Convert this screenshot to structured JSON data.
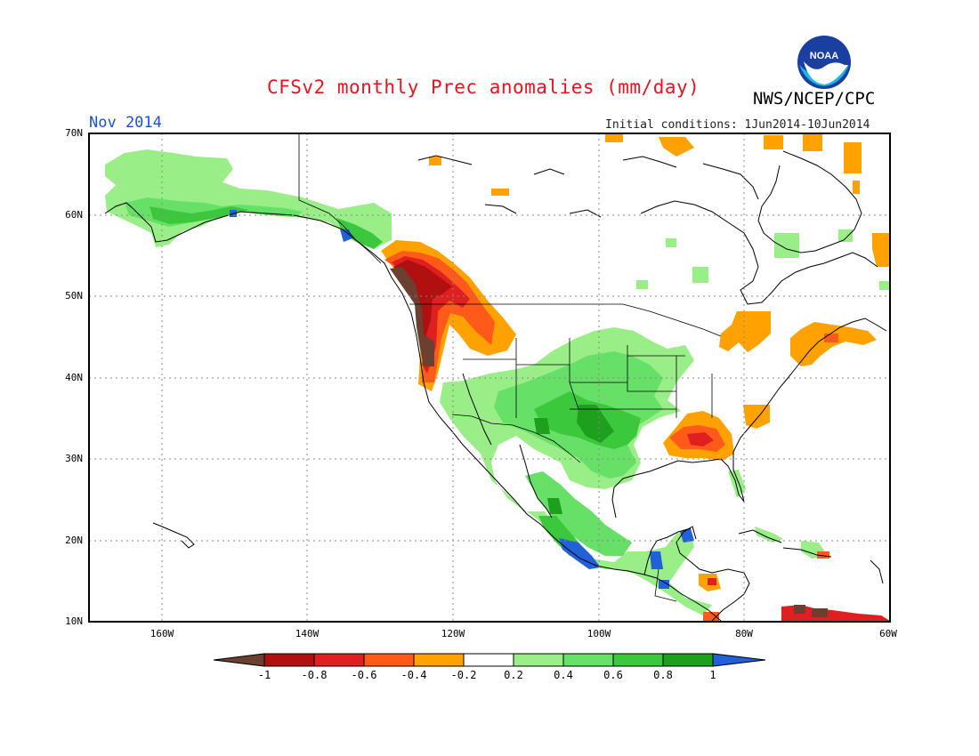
{
  "title": "CFSv2 monthly Prec anomalies (mm/day)",
  "agency": "NWS/NCEP/CPC",
  "logo_text": "NOAA",
  "valid_month": "Nov 2014",
  "initial_conditions": "Initial conditions: 1Jun2014-10Jun2014",
  "colors": {
    "title": "#e8141c",
    "month": "#1e4fd8",
    "neg100": "#6b4030",
    "neg080": "#b01010",
    "neg060": "#e02020",
    "neg040": "#ff5a1a",
    "neg020": "#ffa200",
    "neutral": "#ffffff",
    "pos020": "#99ee88",
    "pos040": "#66e066",
    "pos060": "#3cc83c",
    "pos080": "#1ea01e",
    "pos100": "#2060d8"
  },
  "latitude_labels": [
    "70N",
    "60N",
    "50N",
    "40N",
    "30N",
    "20N",
    "10N"
  ],
  "longitude_labels": [
    "160W",
    "140W",
    "120W",
    "100W",
    "80W",
    "60W"
  ],
  "colorbar_labels": [
    "-1",
    "-0.8",
    "-0.6",
    "-0.4",
    "-0.2",
    "0.2",
    "0.4",
    "0.6",
    "0.8",
    "1"
  ]
}
